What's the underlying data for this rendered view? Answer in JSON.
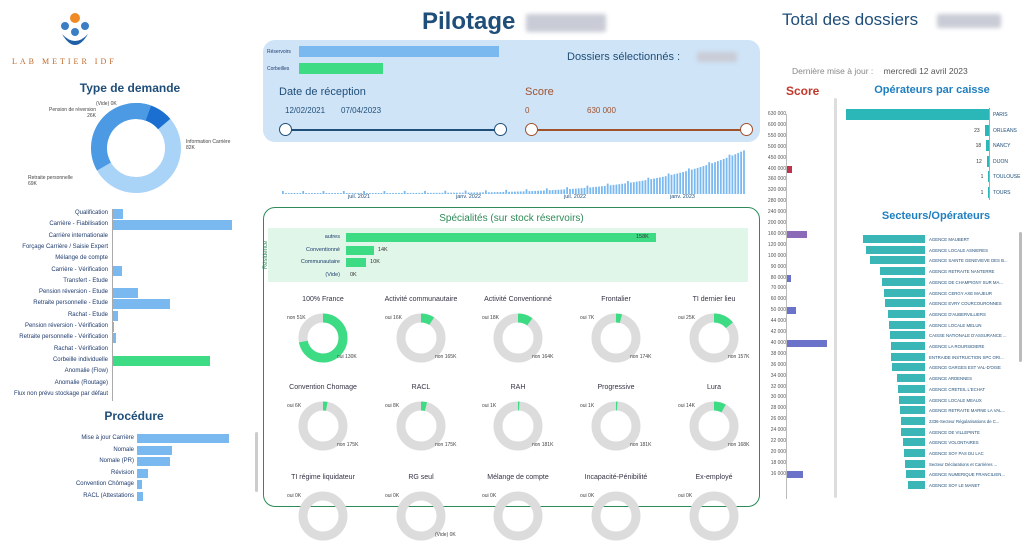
{
  "header": {
    "logo_text": "LAB METIER IDF",
    "title": "Pilotage",
    "total_label": "Total des dossiers",
    "last_update_label": "Dernière mise à jour :",
    "last_update_value": "mercredi 12 avril 2023"
  },
  "filters": {
    "reservoirs_label": "Réservoirs",
    "corbeilles_label": "Corbeilles",
    "selected_label": "Dossiers sélectionnés :",
    "date_title": "Date de réception",
    "date_from": "12/02/2021",
    "date_to": "07/04/2023",
    "score_title": "Score",
    "score_min": "0",
    "score_max": "630 000"
  },
  "timeline": {
    "ticks": [
      "juil. 2021",
      "janv. 2022",
      "juil. 2022",
      "janv. 2023"
    ]
  },
  "type_demande": {
    "title": "Type de demande",
    "segments": [
      {
        "label": "(Vide)",
        "value": "0K"
      },
      {
        "label": "Pension de réversion",
        "value": "26K"
      },
      {
        "label": "Information Carrière",
        "value": "82K"
      },
      {
        "label": "Retraite personnelle",
        "value": "69K"
      }
    ]
  },
  "categories": {
    "items": [
      {
        "label": "Qualification",
        "value": 0.09
      },
      {
        "label": "Carrière - Fiabilisation",
        "value": 1.0
      },
      {
        "label": "Carrière internationale",
        "value": 0
      },
      {
        "label": "Forçage Carrière / Saisie Expert",
        "value": 0
      },
      {
        "label": "Mélange de compte",
        "value": 0
      },
      {
        "label": "Carrière - Vérification",
        "value": 0.08
      },
      {
        "label": "Transfert - Etude",
        "value": 0
      },
      {
        "label": "Pension réversion - Etude",
        "value": 0.22
      },
      {
        "label": "Retraite personnelle - Etude",
        "value": 0.48
      },
      {
        "label": "Rachat - Etude",
        "value": 0.05
      },
      {
        "label": "Pension réversion - Vérification",
        "value": 0.02
      },
      {
        "label": "Retraite personnelle - Vérification",
        "value": 0.03
      },
      {
        "label": "Rachat - Vérification",
        "value": 0
      },
      {
        "label": "Corbeille individuelle",
        "value": 0.82,
        "green": true
      },
      {
        "label": "Anomalie (Flow)",
        "value": 0
      },
      {
        "label": "Anomalie (Routage)",
        "value": 0
      },
      {
        "label": "Flux non prévu stockage par défaut",
        "value": 0
      }
    ]
  },
  "procedure": {
    "title": "Procédure",
    "items": [
      {
        "label": "Mise à jour Carrière",
        "value": 1.0
      },
      {
        "label": "Nomale",
        "value": 0.38
      },
      {
        "label": "Nomale (PR)",
        "value": 0.36
      },
      {
        "label": "Révision",
        "value": 0.12
      },
      {
        "label": "Convention Chômage",
        "value": 0.05
      },
      {
        "label": "RACL (Attestations",
        "value": 0.07
      }
    ]
  },
  "specialites": {
    "title": "Spécialités (sur stock réservoirs)",
    "residence_label": "Résidence",
    "bars": [
      {
        "label": "autres",
        "value": "158K",
        "frac": 1.0
      },
      {
        "label": "Conventionné",
        "value": "14K",
        "frac": 0.09
      },
      {
        "label": "Communautaire",
        "value": "10K",
        "frac": 0.065
      },
      {
        "label": "(Vide)",
        "value": "0K",
        "frac": 0
      }
    ],
    "donuts": [
      {
        "title": "100% France",
        "a": "non 51K",
        "b": "oui 130K",
        "c": "(Vide) 0K",
        "frac": 0.72
      },
      {
        "title": "Activité communautaire",
        "a": "oui 16K",
        "b": "non 165K",
        "frac": 0.09
      },
      {
        "title": "Activité Conventionné",
        "a": "oui 18K",
        "b": "non 164K",
        "frac": 0.1
      },
      {
        "title": "Frontalier",
        "a": "oui 7K",
        "b": "non 174K",
        "frac": 0.04
      },
      {
        "title": "TI dernier lieu",
        "a": "oui 25K",
        "b": "non 157K",
        "frac": 0.14
      },
      {
        "title": "Convention Chomage",
        "a": "oui 6K",
        "b": "non 175K",
        "frac": 0.03
      },
      {
        "title": "RACL",
        "a": "oui 8K",
        "b": "non 175K",
        "frac": 0.04
      },
      {
        "title": "RAH",
        "a": "oui 1K",
        "b": "non 181K",
        "frac": 0.01
      },
      {
        "title": "Progressive",
        "a": "oui 1K",
        "b": "non 181K",
        "frac": 0.01
      },
      {
        "title": "Lura",
        "a": "oui 14K",
        "b": "non 168K",
        "frac": 0.08
      },
      {
        "title": "TI régime liquidateur",
        "a": "oui 0K",
        "b": "",
        "frac": 0
      },
      {
        "title": "RG seul",
        "a": "oui 0K",
        "b": "(Vide) 0K",
        "frac": 0
      },
      {
        "title": "Mélange de compte",
        "a": "oui 0K",
        "b": "",
        "frac": 0
      },
      {
        "title": "Incapacité-Pénibilité",
        "a": "oui 0K",
        "b": "",
        "frac": 0
      },
      {
        "title": "Ex-employé",
        "a": "oui 0K",
        "b": "",
        "frac": 0
      }
    ]
  },
  "score": {
    "title": "Score",
    "ticks": [
      "630 000",
      "600 000",
      "550 000",
      "500 000",
      "450 000",
      "400 000",
      "360 000",
      "320 000",
      "280 000",
      "240 000",
      "200 000",
      "160 000",
      "120 000",
      "100 000",
      "90 000",
      "80 000",
      "70 000",
      "60 000",
      "50 000",
      "44 000",
      "42 000",
      "40 000",
      "38 000",
      "36 000",
      "34 000",
      "32 000",
      "30 000",
      "28 000",
      "26 000",
      "24 000",
      "22 000",
      "20 000",
      "18 000",
      "16 000"
    ],
    "bars": [
      {
        "idx": 5,
        "w": 0.12,
        "color": "#c0334d"
      },
      {
        "idx": 11,
        "w": 0.5,
        "color": "#8b6bb8"
      },
      {
        "idx": 15,
        "w": 0.1,
        "color": "#6a73c9"
      },
      {
        "idx": 18,
        "w": 0.22,
        "color": "#6a73c9"
      },
      {
        "idx": 21,
        "w": 1.0,
        "color": "#6a73c9"
      },
      {
        "idx": 33,
        "w": 0.4,
        "color": "#6a73c9"
      }
    ]
  },
  "operateurs": {
    "title": "Opérateurs par caisse",
    "items": [
      {
        "label": "PARIS",
        "value": "",
        "frac": 1.0
      },
      {
        "label": "ORLEANS",
        "value": "23",
        "frac": 0.03
      },
      {
        "label": "NANCY",
        "value": "18",
        "frac": 0.02
      },
      {
        "label": "DIJON",
        "value": "12",
        "frac": 0.015
      },
      {
        "label": "TOULOUSE",
        "value": "1",
        "frac": 0.004
      },
      {
        "label": "TOURS",
        "value": "1",
        "frac": 0.004
      }
    ]
  },
  "secteurs": {
    "title": "Secteurs/Opérateurs",
    "items": [
      {
        "label": "AGENCE MAUBERT",
        "frac": 1.0
      },
      {
        "label": "AGENCE LOCALE ASNIERES",
        "frac": 0.95
      },
      {
        "label": "AGENCE SAINTE GENEVIEVE DES B...",
        "frac": 0.88
      },
      {
        "label": "AGENCE RETRAITE NANTERRE",
        "frac": 0.72
      },
      {
        "label": "AGENCE DE CHAMPIGNY SUR MA...",
        "frac": 0.7
      },
      {
        "label": "AGENCE CERGY AXE MAJEUR",
        "frac": 0.66
      },
      {
        "label": "AGENCE EVRY COURCOURONNES",
        "frac": 0.64
      },
      {
        "label": "AGENCE D'AUBERVILLIERS",
        "frac": 0.6
      },
      {
        "label": "AGENCE LOCALE MELUN",
        "frac": 0.58
      },
      {
        "label": "CAISSE NATIONALE D'ASSURANCE ...",
        "frac": 0.56
      },
      {
        "label": "AGENCE LA ROURSIDIERE",
        "frac": 0.55
      },
      {
        "label": "ENTRAIDE INSTRUCTION SPC ORI...",
        "frac": 0.55
      },
      {
        "label": "AGENCE GARGES EST VAL-D'OISE",
        "frac": 0.53
      },
      {
        "label": "AGENCE ARDENNES",
        "frac": 0.45
      },
      {
        "label": "AGENCE CRETEIL L'ECHAT",
        "frac": 0.43
      },
      {
        "label": "AGENCE LOCALE MEAUX",
        "frac": 0.42
      },
      {
        "label": "AGENCE RETRAITE MARNE LA VAL...",
        "frac": 0.4
      },
      {
        "label": "2336-Secteur Régularisations de C...",
        "frac": 0.38
      },
      {
        "label": "AGENCE DE VILLEPINTE",
        "frac": 0.38
      },
      {
        "label": "AGENCE VOLONTAIRES",
        "frac": 0.36
      },
      {
        "label": "AGENCE SOY PAS DU LAC",
        "frac": 0.34
      },
      {
        "label": "Secteur Déclarations et Carrières ...",
        "frac": 0.32
      },
      {
        "label": "AGENCE NUMERIQUE FRANCILIEN...",
        "frac": 0.3
      },
      {
        "label": "AGENCE SOY LE MANET",
        "frac": 0.28
      }
    ]
  }
}
